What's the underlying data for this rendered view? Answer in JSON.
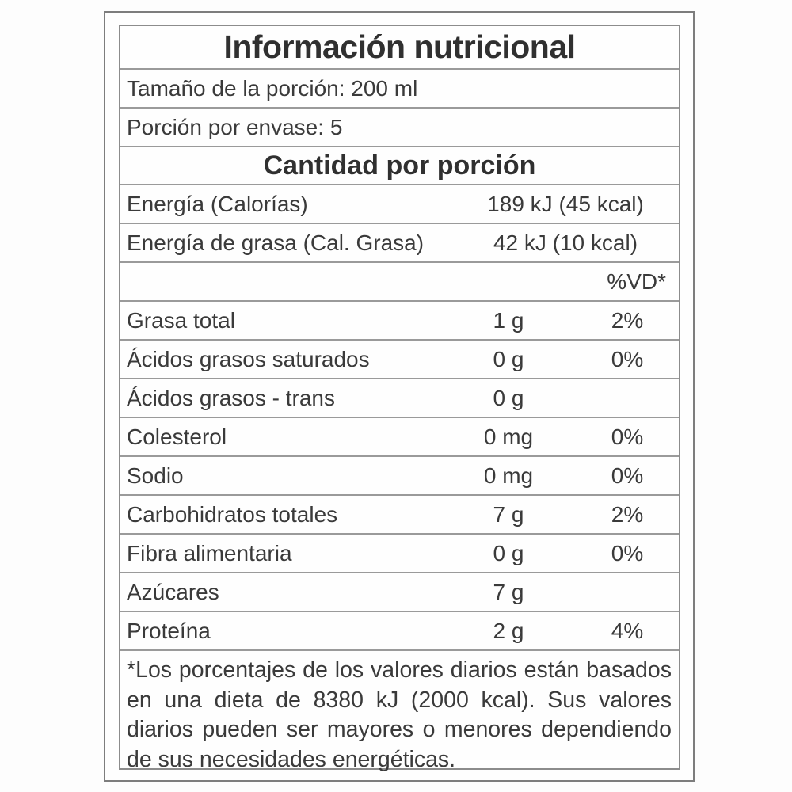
{
  "label": {
    "title": "Información nutricional",
    "serving_size": "Tamaño de la porción: 200 ml",
    "servings_per_container": "Porción por envase: 5",
    "amount_per_serving_header": "Cantidad por porción",
    "dv_column_header": "%VD*",
    "energy_rows": [
      {
        "name": "Energía (Calorías)",
        "value": "189 kJ (45 kcal)"
      },
      {
        "name": "Energía de grasa (Cal. Grasa)",
        "value": "42 kJ (10 kcal)"
      }
    ],
    "nutrients": [
      {
        "name": "Grasa total",
        "amount": "1 g",
        "dv": "2%"
      },
      {
        "name": "Ácidos grasos saturados",
        "amount": "0 g",
        "dv": "0%"
      },
      {
        "name": "Ácidos grasos - trans",
        "amount": "0 g",
        "dv": ""
      },
      {
        "name": "Colesterol",
        "amount": "0 mg",
        "dv": "0%"
      },
      {
        "name": "Sodio",
        "amount": "0 mg",
        "dv": "0%"
      },
      {
        "name": "Carbohidratos totales",
        "amount": "7 g",
        "dv": "2%"
      },
      {
        "name": "Fibra alimentaria",
        "amount": "0 g",
        "dv": "0%"
      },
      {
        "name": "Azúcares",
        "amount": "7 g",
        "dv": ""
      },
      {
        "name": "Proteína",
        "amount": "2 g",
        "dv": "4%"
      }
    ],
    "footnote": "*Los porcentajes de los valores diarios están basados en una dieta de 8380 kJ (2000 kcal). Sus valores diarios pueden ser mayores o menores dependiendo de sus necesidades energéticas.",
    "colors": {
      "text": "#3a3a3a",
      "border": "#8c8c8c",
      "background": "#fdfdfd"
    }
  }
}
